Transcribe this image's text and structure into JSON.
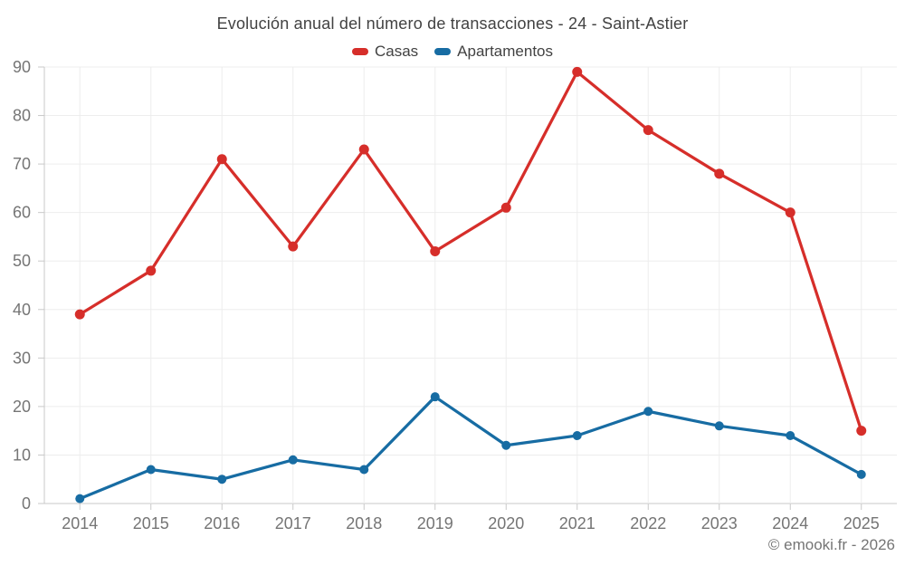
{
  "footer": {
    "credit": "© emooki.fr - 2026"
  },
  "colors": {
    "casas": "#d62e2a",
    "apartamentos": "#176ca3",
    "grid": "#ededed",
    "axis": "#c9c9c9",
    "axis_label": "#757575",
    "title_text": "#424242"
  },
  "chart_data": {
    "type": "line",
    "title": "Evolución anual del número de transacciones - 24 - Saint-Astier",
    "categories": [
      "2014",
      "2015",
      "2016",
      "2017",
      "2018",
      "2019",
      "2020",
      "2021",
      "2022",
      "2023",
      "2024",
      "2025"
    ],
    "series": [
      {
        "name": "Casas",
        "color": "#d62e2a",
        "values": [
          39,
          48,
          71,
          53,
          73,
          52,
          61,
          89,
          77,
          68,
          60,
          15
        ]
      },
      {
        "name": "Apartamentos",
        "color": "#176ca3",
        "values": [
          1,
          7,
          5,
          9,
          7,
          22,
          12,
          14,
          19,
          16,
          14,
          6
        ]
      }
    ],
    "xlabel": "",
    "ylabel": "",
    "ylim": [
      0,
      90
    ],
    "ytick_step": 10,
    "grid": true,
    "legend_position": "top"
  }
}
